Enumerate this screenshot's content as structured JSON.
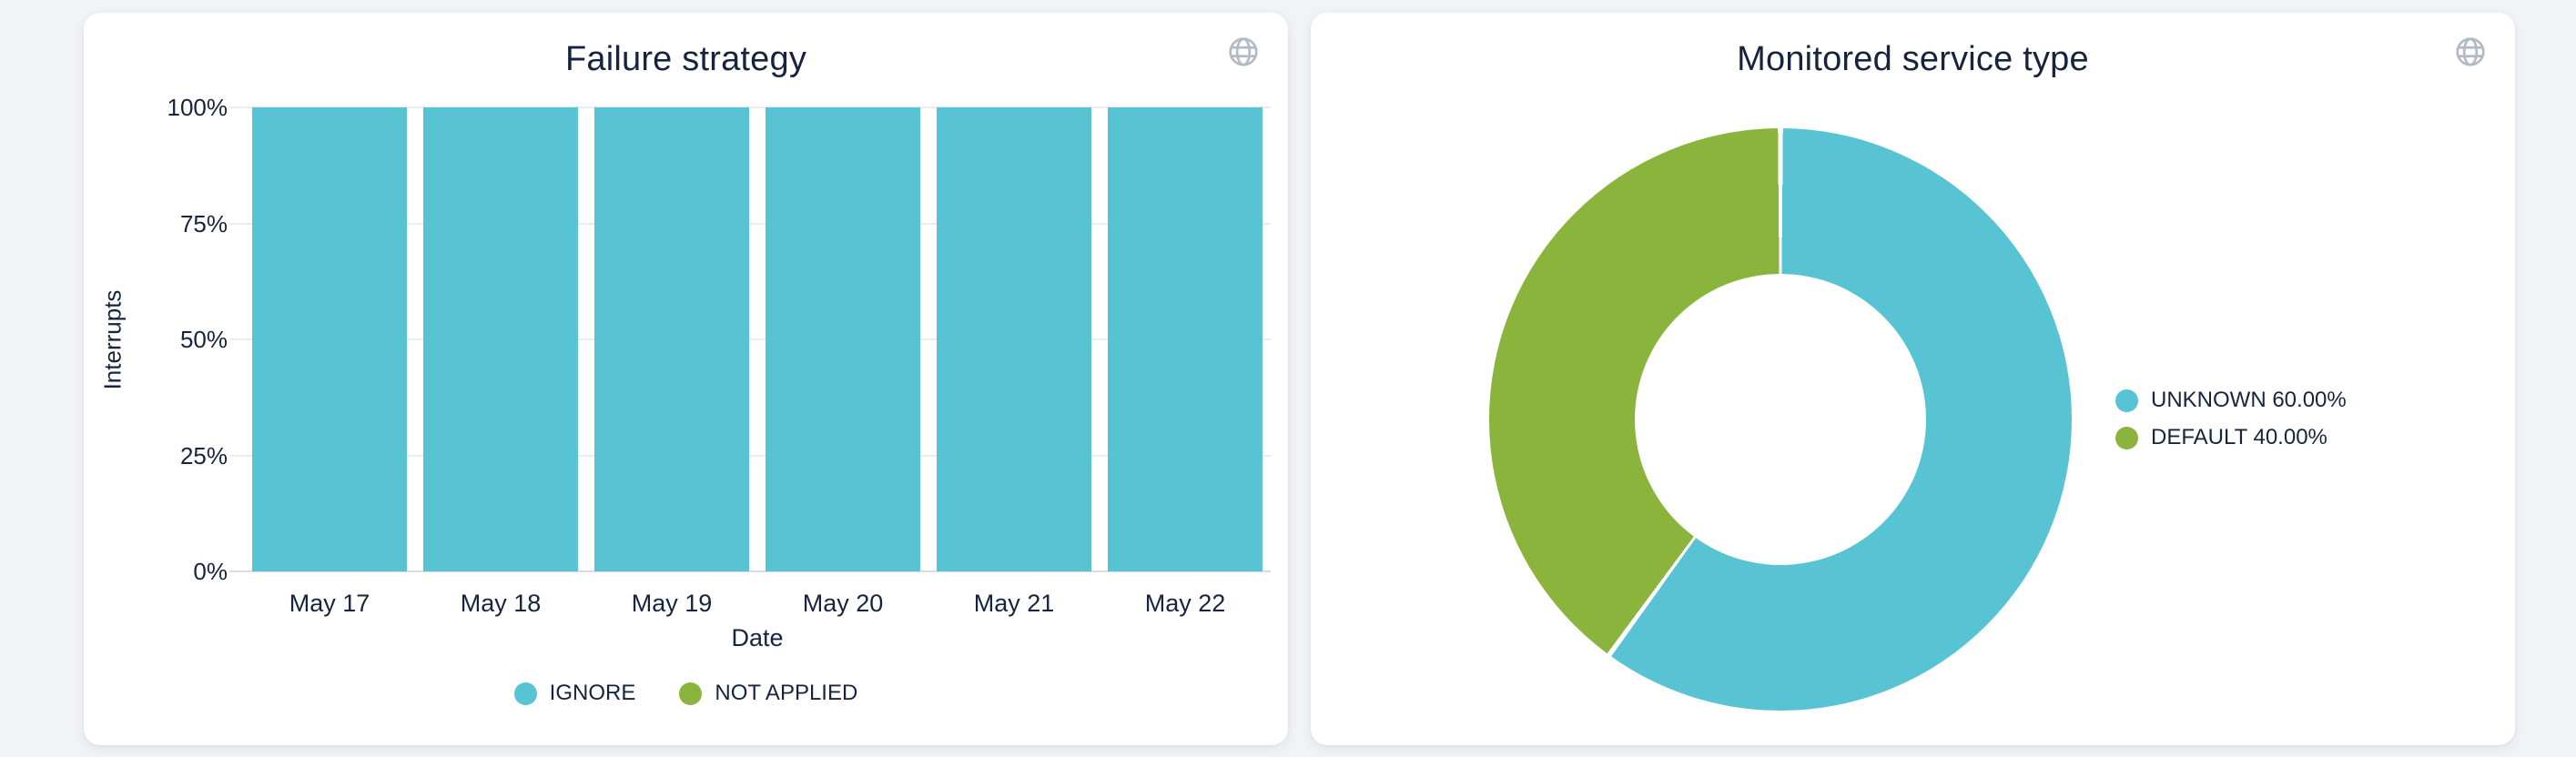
{
  "cards": [
    {
      "title": "Failure strategy",
      "header_icon": "globe-icon"
    },
    {
      "title": "Monitored service type",
      "header_icon": "globe-icon"
    }
  ],
  "colors": {
    "teal": "#57c3d3",
    "green": "#8ab43c",
    "text": "#16243d",
    "icon_gray": "#b3bac6",
    "page_background": "#f1f3f7",
    "card_background": "#ffffff"
  },
  "chart_data": [
    {
      "type": "bar",
      "stacked": true,
      "title": "Failure strategy",
      "categories": [
        "May 17",
        "May 18",
        "May 19",
        "May 20",
        "May 21",
        "May 22"
      ],
      "series": [
        {
          "name": "IGNORE",
          "color": "#57c3d3",
          "values": [
            100,
            100,
            100,
            100,
            100,
            100
          ]
        },
        {
          "name": "NOT APPLIED",
          "color": "#8ab43c",
          "values": [
            0,
            0,
            0,
            0,
            0,
            0
          ]
        }
      ],
      "xlabel": "Date",
      "ylabel": "Interrupts",
      "y_ticks": [
        "0%",
        "25%",
        "50%",
        "75%",
        "100%"
      ],
      "ylim": [
        0,
        100
      ],
      "unit": "percent",
      "grid": true,
      "legend_position": "bottom"
    },
    {
      "type": "donut",
      "title": "Monitored service type",
      "slices": [
        {
          "name": "UNKNOWN",
          "value": 60.0,
          "color": "#57c3d3",
          "legend_label": "UNKNOWN 60.00%"
        },
        {
          "name": "DEFAULT",
          "value": 40.0,
          "color": "#8ab43c",
          "legend_label": "DEFAULT 40.00%"
        }
      ],
      "start_angle_deg": 0,
      "inner_radius_ratio": 0.5,
      "legend_position": "right"
    }
  ]
}
